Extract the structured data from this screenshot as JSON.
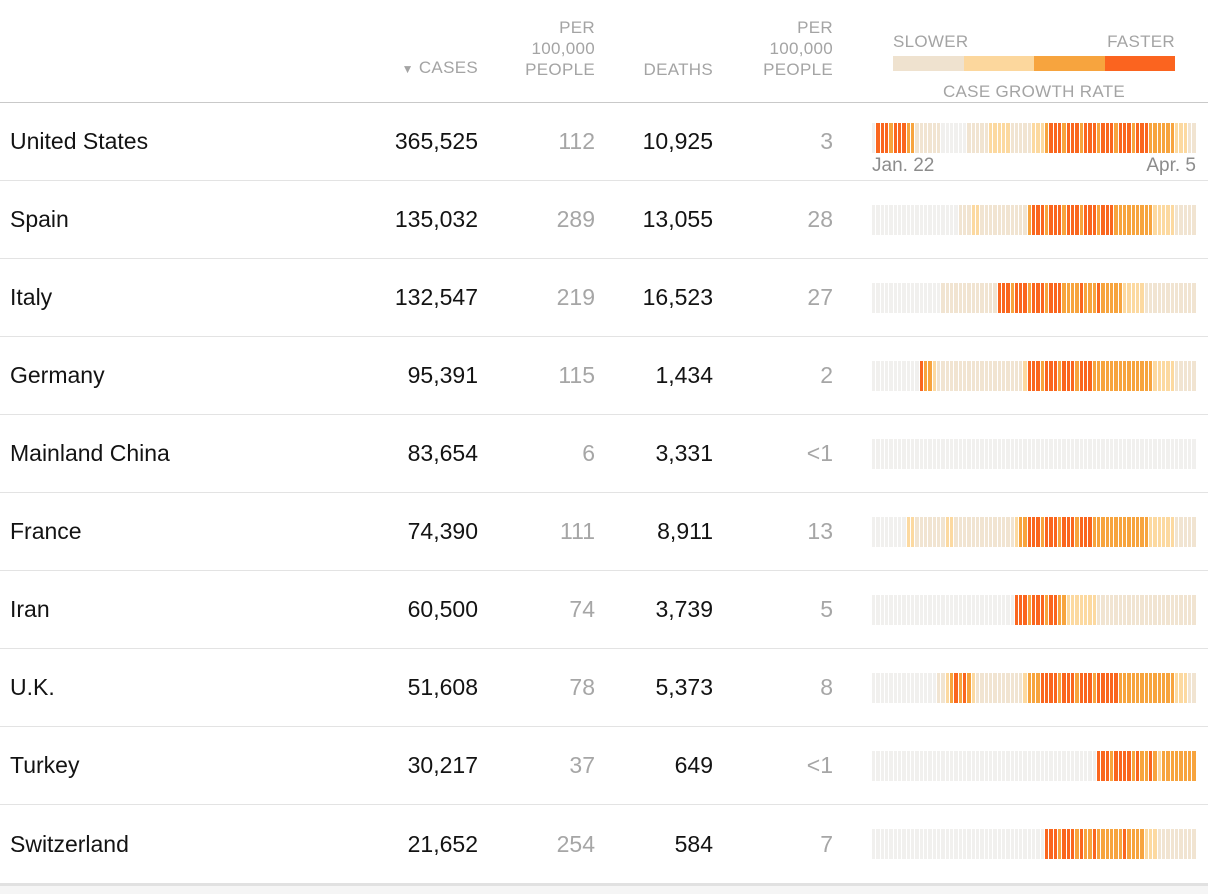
{
  "header": {
    "sort_indicator": "▼",
    "cases_label": "CASES",
    "cases_per_100k_label": [
      "PER",
      "100,000",
      "PEOPLE"
    ],
    "deaths_label": "DEATHS",
    "deaths_per_100k_label": [
      "PER",
      "100,000",
      "PEOPLE"
    ]
  },
  "legend": {
    "slower_label": "SLOWER",
    "faster_label": "FASTER",
    "title": "CASE GROWTH RATE",
    "colors": [
      "#efe2cf",
      "#fcd79d",
      "#f7a43e",
      "#fb641f"
    ]
  },
  "timeline": {
    "start_label": "Jan. 22",
    "end_label": "Apr. 5"
  },
  "colors": {
    "scale": {
      "0": "#f1f0ee",
      "1": "#f1e4d1",
      "2": "#fcd9a0",
      "3": "#f7a43e",
      "4": "#fa661e"
    },
    "text_dark": "#131313",
    "text_gray": "#a6a6a6",
    "header_gray": "#a4a4a4"
  },
  "chart_data": {
    "type": "heatmap",
    "title": "CASE GROWTH RATE",
    "x_range": [
      "Jan. 22",
      "Apr. 5"
    ],
    "scale_legend": {
      "left": "SLOWER",
      "right": "FASTER",
      "levels": [
        "#efe2cf",
        "#fcd79d",
        "#f7a43e",
        "#fb641f"
      ]
    },
    "growth_encoding": "daily case growth rate, one bar per day Jan. 22 - Apr. 5; 0=none/slowest(gray) 1=slow(beige) 2=moderate(light orange) 3=fast(orange) 4=fastest(red-orange)",
    "rows": [
      {
        "country": "United States",
        "cases": "365,525",
        "cases_per_100k": "112",
        "deaths": "10,925",
        "deaths_per_100k": "3",
        "growth": [
          "0",
          "4443444",
          "33",
          "111111",
          "000000",
          "11111",
          "22222",
          "11111",
          "222",
          "3",
          "4443444344",
          "4344434443",
          "4443",
          "33333",
          "222",
          "11"
        ]
      },
      {
        "country": "Spain",
        "cases": "135,032",
        "cases_per_100k": "289",
        "deaths": "13,055",
        "deaths_per_100k": "28",
        "growth": [
          "0000000000",
          "0000000000",
          "111",
          "22",
          "1111111111",
          "1",
          "3",
          "4443444344",
          "4344434443",
          "33333333",
          "22222",
          "11111"
        ]
      },
      {
        "country": "Italy",
        "cases": "132,547",
        "cases_per_100k": "219",
        "deaths": "16,523",
        "deaths_per_100k": "27",
        "growth": [
          "0000000000",
          "000000",
          "1111111111",
          "111",
          "4443444344",
          "43444",
          "3333433343",
          "33",
          "3322",
          "222",
          "1111111111",
          "11"
        ]
      },
      {
        "country": "Germany",
        "cases": "95,391",
        "cases_per_100k": "115",
        "deaths": "1,434",
        "deaths_per_100k": "2",
        "growth": [
          "0000000000",
          "0",
          "4",
          "33",
          "2",
          "1111111111",
          "1111111111",
          "2",
          "4443444344",
          "43444",
          "3333333333",
          "3",
          "33322",
          "222",
          "11111"
        ]
      },
      {
        "country": "Mainland China",
        "cases": "83,654",
        "cases_per_100k": "6",
        "deaths": "3,331",
        "deaths_per_100k": "<1",
        "growth": [
          "0000000000",
          "0000000000",
          "0000000000",
          "0000000000",
          "0000000000",
          "0000000000",
          "0000000000",
          "00000"
        ]
      },
      {
        "country": "France",
        "cases": "74,390",
        "cases_per_100k": "111",
        "deaths": "8,911",
        "deaths_per_100k": "13",
        "growth": [
          "00000000",
          "22",
          "1111111",
          "22",
          "1111111111",
          "1111",
          "2",
          "33",
          "4443444344",
          "434443",
          "3333333333",
          "33",
          "222222",
          "11111"
        ]
      },
      {
        "country": "Iran",
        "cases": "60,500",
        "cases_per_100k": "74",
        "deaths": "3,739",
        "deaths_per_100k": "5",
        "growth": [
          "0000000000",
          "0000000000",
          "0000000000",
          "000",
          "4443444344",
          "33",
          "2222222",
          "1111111111",
          "1111111111",
          "111"
        ]
      },
      {
        "country": "U.K.",
        "cases": "51,608",
        "cases_per_100k": "78",
        "deaths": "5,373",
        "deaths_per_100k": "8",
        "growth": [
          "0000000000",
          "00000",
          "11",
          "2",
          "3",
          "4",
          "3",
          "4",
          "3",
          "2",
          "1111111111",
          "1",
          "2",
          "3334",
          "4443444344",
          "43444",
          "44",
          "3333333333",
          "333",
          "222",
          "11"
        ]
      },
      {
        "country": "Turkey",
        "cases": "30,217",
        "cases_per_100k": "37",
        "deaths": "649",
        "deaths_per_100k": "<1",
        "growth": [
          "0000000000",
          "0000000000",
          "0000000000",
          "0000000000",
          "0000000000",
          "00",
          "4443444434",
          "3343",
          "2",
          "3333",
          "3333"
        ]
      },
      {
        "country": "Switzerland",
        "cases": "21,652",
        "cases_per_100k": "254",
        "deaths": "584",
        "deaths_per_100k": "7",
        "growth": [
          "0000000000",
          "0000000000",
          "0000000000",
          "0000000000",
          "444344434",
          "33",
          "4",
          "333333",
          "4",
          "3333",
          "222",
          "111111111"
        ]
      }
    ]
  }
}
